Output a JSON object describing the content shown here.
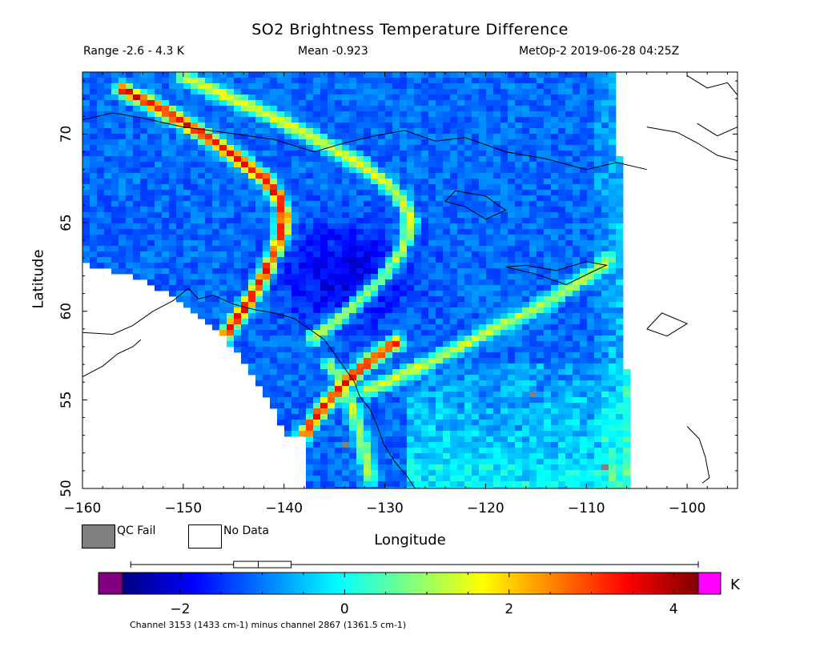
{
  "chart_data": {
    "type": "heatmap",
    "title": "SO2 Brightness Temperature Difference",
    "range_label": "Range -2.6 - 4.3 K",
    "mean_label": "Mean -0.923",
    "source_label": "MetOp-2 2019-06-28 04:25Z",
    "xlabel": "Longitude",
    "ylabel": "Latitude",
    "xlim": [
      -160,
      -95
    ],
    "ylim": [
      50,
      73.5
    ],
    "xticks": [
      -160,
      -150,
      -140,
      -130,
      -120,
      -110,
      -100
    ],
    "yticks": [
      50,
      55,
      60,
      65,
      70
    ],
    "colorbar": {
      "unit": "K",
      "min": -2.7,
      "max": 4.3,
      "ticks": [
        -2,
        0,
        2,
        4
      ],
      "colors": [
        "#000080",
        "#0000ff",
        "#0080ff",
        "#00ffff",
        "#80ff80",
        "#ffff00",
        "#ff8000",
        "#ff0000",
        "#800000"
      ],
      "under_color": "#800080",
      "over_color": "#ff00ff",
      "boxplot": {
        "min": -2.6,
        "q1": -1.35,
        "median": -1.05,
        "q3": -0.65,
        "max": 4.3
      }
    },
    "legend": [
      {
        "label": "QC Fail",
        "color": "#808080"
      },
      {
        "label": "No Data",
        "color": "#ffffff"
      }
    ],
    "mean_value": -0.923,
    "range_values": [
      -2.6,
      4.3
    ],
    "features": [
      {
        "type": "plume",
        "lat": [
          72.5,
          71.5,
          70.5,
          69.5,
          68.5,
          67.5,
          66.5,
          65.5,
          64.5,
          63.5,
          62.5,
          61.5,
          60.5,
          59.5,
          58.5
        ],
        "lon": [
          -156,
          -152.5,
          -149.5,
          -146.8,
          -144.3,
          -142,
          -140.6,
          -140,
          -140.2,
          -140.8,
          -141.6,
          -142.5,
          -143.5,
          -144.8,
          -146
        ],
        "value": 3.2
      },
      {
        "type": "plume",
        "lat": [
          73.2,
          72.2,
          71.2,
          70.2,
          69.2,
          68.2,
          67.2,
          66.2,
          65.2,
          64.2,
          63.2,
          62.2,
          61.2,
          60.2,
          59.4,
          58.5
        ],
        "lon": [
          -150,
          -146,
          -142,
          -138.5,
          -135.2,
          -132.2,
          -129.8,
          -128.2,
          -127.5,
          -127.8,
          -128.6,
          -129.8,
          -131.4,
          -133.2,
          -135,
          -137
        ],
        "value": 1.3
      },
      {
        "type": "plume",
        "lat": [
          52.2,
          53.2,
          54.2,
          55.2,
          56.2,
          57.2,
          58.2
        ],
        "lon": [
          -138.8,
          -137.8,
          -136.6,
          -135.2,
          -133.5,
          -131.5,
          -129
        ],
        "value": 3.0
      },
      {
        "type": "plume",
        "lat": [
          55.5,
          56.2,
          57.0,
          57.8,
          58.6,
          59.3,
          60.0,
          60.7,
          61.4,
          62.1,
          62.8
        ],
        "lon": [
          -132,
          -129,
          -126,
          -123.2,
          -120.6,
          -118,
          -115.6,
          -113.4,
          -111.4,
          -109.6,
          -108
        ],
        "value": 1.0
      },
      {
        "type": "plume",
        "lat": [
          57.0,
          56.2,
          55.4,
          54.6,
          53.8,
          53.0,
          52.2,
          51.4,
          50.6
        ],
        "lon": [
          -135.5,
          -134.5,
          -133.8,
          -133.2,
          -132.8,
          -132.4,
          -132.1,
          -131.8,
          -131.5
        ],
        "value": 0.8
      }
    ]
  },
  "legend_labels": {
    "qc_fail": "QC Fail",
    "no_data": "No Data",
    "unit": "K"
  },
  "footnote": "Channel 3153 (1433 cm-1) minus channel 2867 (1361.5 cm-1)"
}
